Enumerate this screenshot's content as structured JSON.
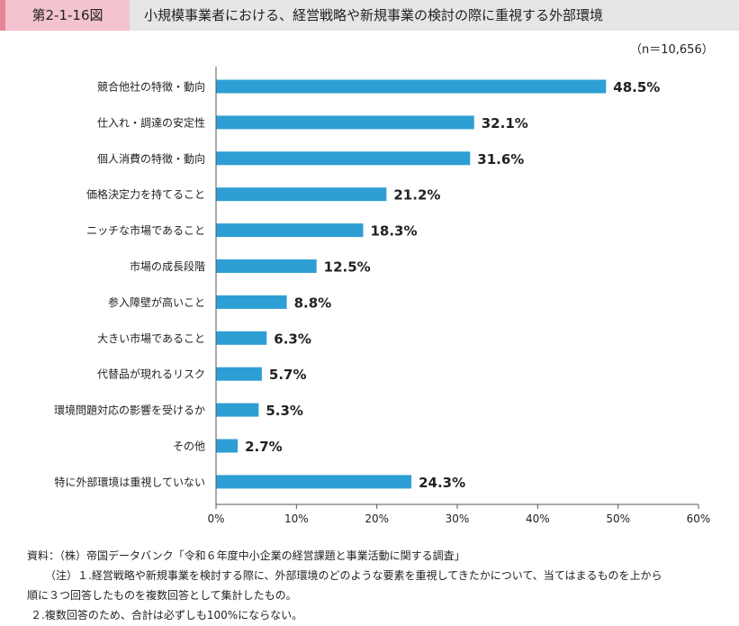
{
  "figure": {
    "label": "第2-1-16図",
    "title": "小規模事業者における、経営戦略や新規事業の検討の際に重視する外部環境",
    "n_note": "（n＝10,656）"
  },
  "chart_data": {
    "type": "bar",
    "orientation": "horizontal",
    "categories": [
      "競合他社の特徴・動向",
      "仕入れ・調達の安定性",
      "個人消費の特徴・動向",
      "価格決定力を持てること",
      "ニッチな市場であること",
      "市場の成長段階",
      "参入障壁が高いこと",
      "大きい市場であること",
      "代替品が現れるリスク",
      "環境問題対応の影響を受けるか",
      "その他",
      "特に外部環境は重視していない"
    ],
    "values": [
      48.5,
      32.1,
      31.6,
      21.2,
      18.3,
      12.5,
      8.8,
      6.3,
      5.7,
      5.3,
      2.7,
      24.3
    ],
    "value_labels": [
      "48.5%",
      "32.1%",
      "31.6%",
      "21.2%",
      "18.3%",
      "12.5%",
      "8.8%",
      "6.3%",
      "5.7%",
      "5.3%",
      "2.7%",
      "24.3%"
    ],
    "xlim": [
      0,
      60
    ],
    "xticks": [
      0,
      10,
      20,
      30,
      40,
      50,
      60
    ],
    "xtick_labels": [
      "0%",
      "10%",
      "20%",
      "30%",
      "40%",
      "50%",
      "60%"
    ],
    "bar_color": "#2e9fd4",
    "grid": false
  },
  "notes": [
    "資料：（株）帝国データバンク「令和６年度中小企業の経営課題と事業活動に関する調査」",
    "（注）１.経営戦略や新規事業を検討する際に、外部環境のどのような要素を重視してきたかについて、当てはまるものを上から",
    "順に３つ回答したものを複数回答として集計したもの。",
    "２.複数回答のため、合計は必ずしも100%にならない。"
  ]
}
